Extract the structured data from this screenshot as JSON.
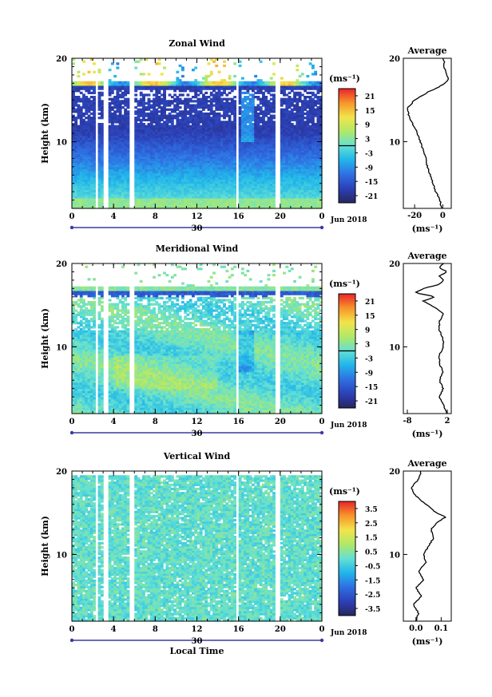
{
  "figure": {
    "date_label": "Jun 2018",
    "x_axis_label": "Local Time",
    "day_label": "30"
  },
  "chart_data": [
    {
      "type": "heatmap",
      "title": "Zonal Wind",
      "ylabel": "Height (km)",
      "xlabel": "",
      "x_ticks": [
        "0",
        "4",
        "8",
        "12",
        "16",
        "20",
        "0"
      ],
      "y_ticks": [
        "10",
        "20"
      ],
      "xlim": [
        0,
        24
      ],
      "ylim": [
        2,
        20
      ],
      "colorbar": {
        "unit": "(ms⁻¹)",
        "ticks": [
          "21",
          "15",
          "9",
          "3",
          "-3",
          "-9",
          "-15",
          "-21"
        ],
        "range": [
          -24,
          24
        ],
        "zero_line_value": 0
      },
      "data_gaps_hours": [
        [
          2.2,
          2.6
        ],
        [
          3.0,
          3.4
        ],
        [
          5.6,
          5.9
        ],
        [
          15.8,
          16.1
        ],
        [
          19.6,
          20.1
        ]
      ],
      "profile": {
        "title": "Average",
        "x_ticks": [
          "-20",
          "0"
        ],
        "xlim": [
          -28,
          6
        ],
        "x_unit": "(ms⁻¹)",
        "height": [
          2,
          3,
          4,
          5,
          6,
          7,
          8,
          9,
          10,
          11,
          12,
          13,
          14,
          15,
          16,
          16.5,
          17,
          17.5,
          18,
          18.5,
          19,
          19.5,
          20
        ],
        "value": [
          -1,
          -2,
          -5,
          -7,
          -9,
          -11,
          -12,
          -14,
          -16,
          -18,
          -21,
          -24,
          -25,
          -20,
          -10,
          -3,
          1,
          4,
          3,
          2,
          1,
          1,
          0
        ]
      }
    },
    {
      "type": "heatmap",
      "title": "Meridional Wind",
      "ylabel": "Height (km)",
      "xlabel": "",
      "x_ticks": [
        "0",
        "4",
        "8",
        "12",
        "16",
        "20",
        "0"
      ],
      "y_ticks": [
        "10",
        "20"
      ],
      "xlim": [
        0,
        24
      ],
      "ylim": [
        2,
        20
      ],
      "colorbar": {
        "unit": "(ms⁻¹)",
        "ticks": [
          "21",
          "15",
          "9",
          "3",
          "-3",
          "-9",
          "-15",
          "-21"
        ],
        "range": [
          -24,
          24
        ],
        "zero_line_value": 0
      },
      "data_gaps_hours": [
        [
          2.2,
          2.6
        ],
        [
          3.0,
          3.4
        ],
        [
          5.6,
          5.9
        ],
        [
          15.8,
          16.1
        ],
        [
          19.6,
          20.1
        ]
      ],
      "profile": {
        "title": "Average",
        "x_ticks": [
          "-8",
          "2"
        ],
        "xlim": [
          -9,
          3
        ],
        "x_unit": "(ms⁻¹)",
        "height": [
          2,
          3,
          4,
          5,
          6,
          7,
          8,
          9,
          10,
          11,
          12,
          13,
          14,
          15,
          15.5,
          16,
          16.5,
          17,
          17.5,
          18,
          18.5,
          19,
          19.5,
          20
        ],
        "value": [
          2,
          1,
          0,
          1,
          0,
          1,
          0,
          0,
          1,
          1,
          0,
          0,
          1,
          -2,
          -4,
          -1,
          -6,
          -4,
          0,
          1,
          0,
          2,
          0,
          1
        ]
      }
    },
    {
      "type": "heatmap",
      "title": "Vertical Wind",
      "ylabel": "Height (km)",
      "xlabel": "Local Time",
      "x_ticks": [
        "0",
        "4",
        "8",
        "12",
        "16",
        "20",
        "0"
      ],
      "y_ticks": [
        "10",
        "20"
      ],
      "xlim": [
        0,
        24
      ],
      "ylim": [
        2,
        20
      ],
      "colorbar": {
        "unit": "(ms⁻¹)",
        "ticks": [
          "3.5",
          "2.5",
          "1.5",
          "0.5",
          "-0.5",
          "-1.5",
          "-2.5",
          "-3.5"
        ],
        "range": [
          -4,
          4
        ]
      },
      "data_gaps_hours": [
        [
          2.2,
          2.6
        ],
        [
          3.0,
          3.4
        ],
        [
          5.6,
          5.9
        ],
        [
          15.8,
          16.1
        ],
        [
          19.6,
          20.1
        ]
      ],
      "profile": {
        "title": "Average",
        "x_ticks": [
          "0.0",
          "0.1"
        ],
        "xlim": [
          -0.05,
          0.14
        ],
        "x_unit": "(ms⁻¹)",
        "height": [
          2,
          3,
          4,
          5,
          6,
          7,
          8,
          9,
          10,
          11,
          12,
          13,
          14,
          14.5,
          15,
          16,
          17,
          18,
          19,
          20
        ],
        "value": [
          0.0,
          0.01,
          -0.01,
          0.02,
          0.0,
          0.03,
          0.01,
          0.04,
          0.03,
          0.05,
          0.07,
          0.06,
          0.09,
          0.12,
          0.08,
          0.04,
          0.0,
          -0.02,
          0.01,
          0.02
        ]
      }
    }
  ]
}
